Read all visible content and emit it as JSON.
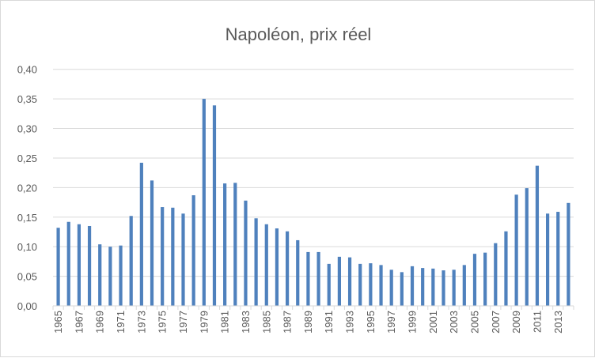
{
  "chart_data": {
    "type": "bar",
    "title": "Napoléon, prix réel",
    "xlabel": "",
    "ylabel": "",
    "ylim": [
      0,
      0.4
    ],
    "yticks": [
      "0,00",
      "0,05",
      "0,10",
      "0,15",
      "0,20",
      "0,25",
      "0,30",
      "0,35",
      "0,40"
    ],
    "grid": true,
    "legend": "none",
    "color": "#4f81bd",
    "categories": [
      1965,
      1966,
      1967,
      1968,
      1969,
      1970,
      1971,
      1972,
      1973,
      1974,
      1975,
      1976,
      1977,
      1978,
      1979,
      1980,
      1981,
      1982,
      1983,
      1984,
      1985,
      1986,
      1987,
      1988,
      1989,
      1990,
      1991,
      1992,
      1993,
      1994,
      1995,
      1996,
      1997,
      1998,
      1999,
      2000,
      2001,
      2002,
      2003,
      2004,
      2005,
      2006,
      2007,
      2008,
      2009,
      2010,
      2011,
      2012,
      2013,
      2014
    ],
    "xtick_labels": [
      "1965",
      "1967",
      "1969",
      "1971",
      "1973",
      "1975",
      "1977",
      "1979",
      "1981",
      "1983",
      "1985",
      "1987",
      "1989",
      "1991",
      "1993",
      "1995",
      "1997",
      "1999",
      "2001",
      "2003",
      "2005",
      "2007",
      "2009",
      "2011",
      "2013"
    ],
    "values": [
      0.132,
      0.142,
      0.138,
      0.135,
      0.104,
      0.1,
      0.102,
      0.152,
      0.242,
      0.212,
      0.167,
      0.166,
      0.156,
      0.187,
      0.35,
      0.339,
      0.207,
      0.208,
      0.178,
      0.148,
      0.138,
      0.131,
      0.126,
      0.111,
      0.091,
      0.091,
      0.071,
      0.083,
      0.082,
      0.071,
      0.072,
      0.069,
      0.061,
      0.057,
      0.067,
      0.064,
      0.063,
      0.06,
      0.061,
      0.069,
      0.088,
      0.09,
      0.106,
      0.126,
      0.188,
      0.199,
      0.237,
      0.156,
      0.159,
      0.174
    ]
  }
}
